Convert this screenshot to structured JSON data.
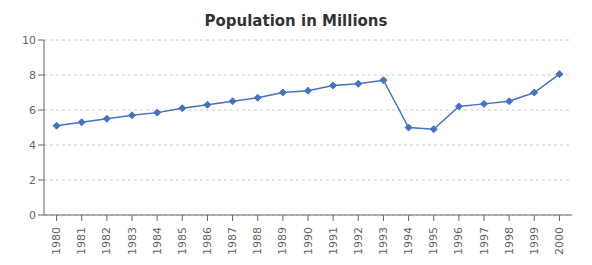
{
  "chart_data": {
    "type": "line",
    "title": "Population in Millions",
    "x": [
      1980,
      1981,
      1982,
      1983,
      1984,
      1985,
      1986,
      1987,
      1988,
      1989,
      1990,
      1991,
      1992,
      1993,
      1994,
      1995,
      1996,
      1997,
      1998,
      1999,
      2000
    ],
    "values": [
      5.1,
      5.3,
      5.5,
      5.7,
      5.85,
      6.1,
      6.3,
      6.5,
      6.7,
      7.0,
      7.1,
      7.4,
      7.5,
      7.7,
      5.0,
      4.9,
      6.2,
      6.35,
      6.5,
      7.0,
      8.05
    ],
    "color": "#4472C4",
    "marker": "diamond",
    "xlim": [
      1979.5,
      2000.5
    ],
    "xticks": [
      1980,
      1981,
      1982,
      1983,
      1984,
      1985,
      1986,
      1987,
      1988,
      1989,
      1990,
      1991,
      1992,
      1993,
      1994,
      1995,
      1996,
      1997,
      1998,
      1999,
      2000
    ],
    "ylim": [
      0,
      10
    ],
    "yticks": [
      0,
      2,
      4,
      6,
      8,
      10
    ],
    "grid": true
  }
}
